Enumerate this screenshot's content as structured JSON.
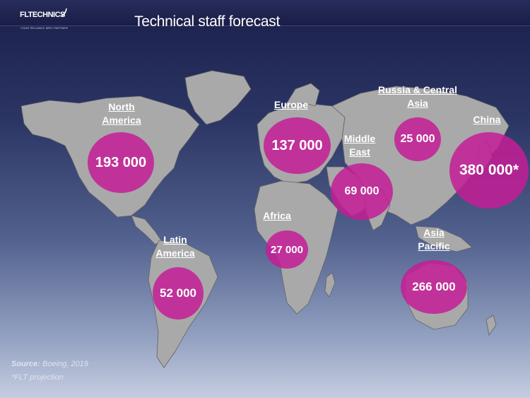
{
  "header": {
    "logo_text": "FLTECHNICS",
    "logo_tagline": "YOUR RELIABLE MRO PARTNER",
    "title": "Technical staff forecast"
  },
  "regions": [
    {
      "id": "north-america",
      "label": "North\nAmerica",
      "value": "193 000"
    },
    {
      "id": "latin-america",
      "label": "Latin\nAmerica",
      "value": "52 000"
    },
    {
      "id": "europe",
      "label": "Europe",
      "value": "137 000"
    },
    {
      "id": "africa",
      "label": "Africa",
      "value": "27 000"
    },
    {
      "id": "middle-east",
      "label": "Middle\nEast",
      "value": "69 000"
    },
    {
      "id": "russia-central-asia",
      "label": "Russia & Central\nAsia",
      "value": "25 000"
    },
    {
      "id": "china",
      "label": "China",
      "value": "380 000*"
    },
    {
      "id": "asia-pacific",
      "label": "Asia\nPacific",
      "value": "266 000"
    }
  ],
  "footer": {
    "source_label": "Source:",
    "source_text": " Boeing, 2019",
    "note": "*FLT projection"
  },
  "colors": {
    "bubble": "#c41e96",
    "land": "#a9a9a9",
    "background_top": "#1b1f4a",
    "background_bottom": "#c6cde0"
  }
}
